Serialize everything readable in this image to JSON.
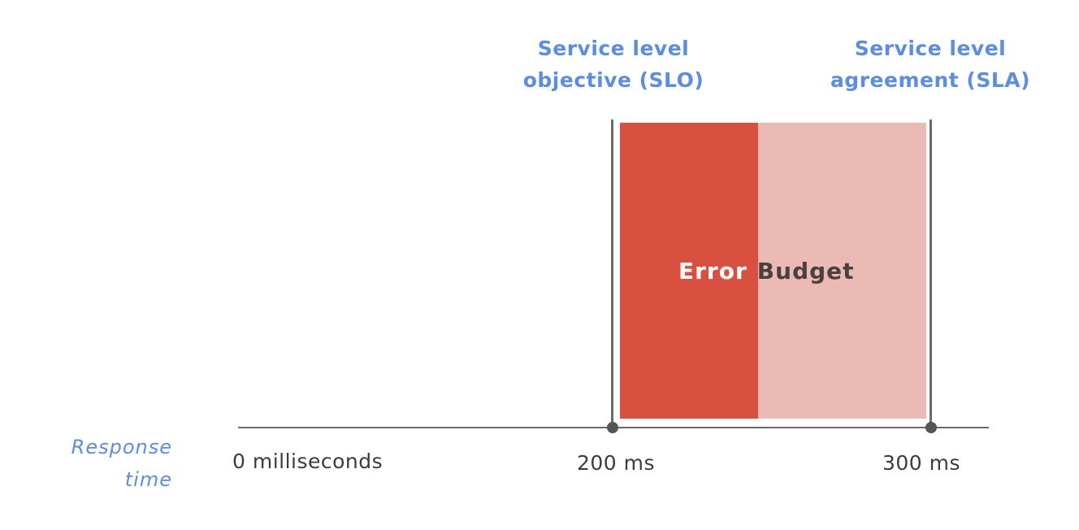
{
  "markers": {
    "slo": {
      "line1": "Service level",
      "line2": "objective (SLO)"
    },
    "sla": {
      "line1": "Service level",
      "line2": "agreement (SLA)"
    }
  },
  "axis": {
    "label_line1": "Response",
    "label_line2": "time",
    "ticks": {
      "zero": "0 milliseconds",
      "slo": "200 ms",
      "sla": "300 ms"
    }
  },
  "error_budget": {
    "word1": "Error",
    "word2": "Budget"
  },
  "colors": {
    "label_blue": "#5b8ee0",
    "budget_consumed": "#d95040",
    "budget_remaining": "#ecbab4",
    "line_gray": "#6a6a6a"
  }
}
